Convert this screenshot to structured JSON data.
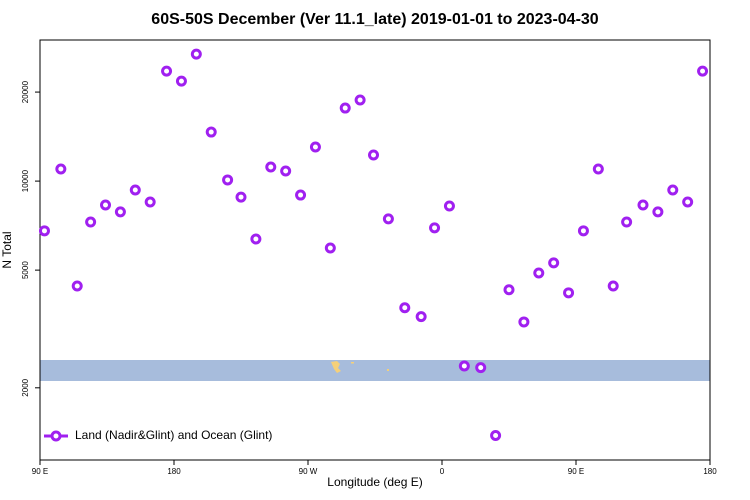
{
  "chart_data": {
    "type": "scatter",
    "title": "60S-50S December (Ver 11.1_late)   2019-01-01 to 2023-04-30",
    "xlabel": "Longitude (deg E)",
    "ylabel": "N Total",
    "xlim": [
      90,
      540
    ],
    "xticks": [
      {
        "value": 90,
        "label": "90 E"
      },
      {
        "value": 180,
        "label": "180"
      },
      {
        "value": 270,
        "label": "90 W"
      },
      {
        "value": 360,
        "label": "0"
      },
      {
        "value": 450,
        "label": "90 E"
      },
      {
        "value": 540,
        "label": "180"
      }
    ],
    "ylim": [
      1140,
      30000
    ],
    "ylog": true,
    "yticks": [
      2000,
      5000,
      10000,
      20000
    ],
    "legend": "lower left",
    "series": [
      {
        "name": "Land (Nadir&Glint) and Ocean (Glint)",
        "color": "#a020f0",
        "x": [
          93,
          104,
          115,
          124,
          134,
          144,
          154,
          164,
          175,
          185,
          195,
          205,
          216,
          225,
          235,
          245,
          255,
          265,
          275,
          285,
          295,
          305,
          314,
          324,
          335,
          346,
          355,
          365,
          375,
          386,
          396,
          405,
          415,
          425,
          435,
          445,
          455,
          465,
          475,
          484,
          495,
          505,
          515,
          525,
          535
        ],
        "values": [
          6790,
          10990,
          4420,
          7270,
          8300,
          7870,
          9330,
          8500,
          23550,
          21780,
          26880,
          14650,
          10090,
          8830,
          6370,
          11160,
          10820,
          8970,
          13040,
          5940,
          17660,
          18800,
          12250,
          7450,
          3730,
          3480,
          6950,
          8240,
          2370,
          2340,
          1380,
          4290,
          3340,
          4890,
          5290,
          4190,
          6790,
          10990,
          4420,
          7270,
          8300,
          7870,
          9330,
          8500,
          23550
        ]
      }
    ]
  }
}
